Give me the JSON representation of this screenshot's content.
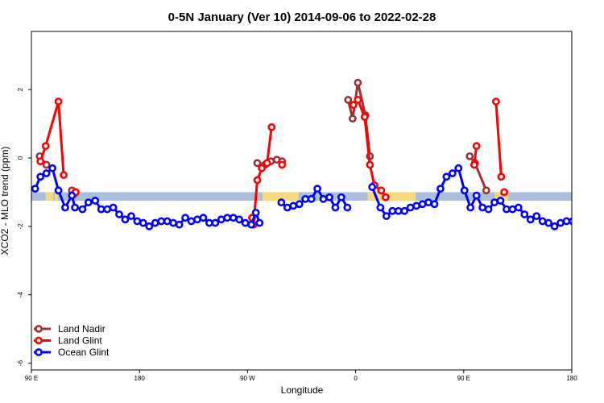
{
  "chart_data": {
    "type": "line",
    "title": "0-5N January (Ver 10)   2014-09-06 to 2022-02-28",
    "xlabel": "Longitude",
    "ylabel": "XCO2 - MLO trend (ppm)",
    "xlim": [
      90,
      450
    ],
    "ylim": [
      -6.2,
      3.7
    ],
    "x_ticks": [
      {
        "value": 90,
        "label": "90 E"
      },
      {
        "value": 162,
        "label": "180"
      },
      {
        "value": 234,
        "label": "90 W"
      },
      {
        "value": 306,
        "label": "0"
      },
      {
        "value": 378,
        "label": "90 E"
      },
      {
        "value": 450,
        "label": "180"
      }
    ],
    "y_ticks": [
      {
        "value": -6,
        "label": "-6"
      },
      {
        "value": -4,
        "label": "-4"
      },
      {
        "value": -2,
        "label": "-2"
      },
      {
        "value": 0,
        "label": "0"
      },
      {
        "value": 2,
        "label": "2"
      }
    ],
    "grid": false,
    "legend_position": "bottom-left",
    "band": {
      "y_range": [
        -1.25,
        -1.0
      ],
      "ocean_color": "#a9bfdc",
      "land_color": "#f9d77e",
      "land_segments": [
        [
          99.5,
          104.5
        ],
        [
          105.5,
          107.5
        ],
        [
          244,
          268
        ],
        [
          314,
          346
        ],
        [
          398.5,
          402.5
        ],
        [
          403.5,
          407.5
        ]
      ]
    },
    "series": [
      {
        "name": "Land Nadir",
        "color": "#a0303a",
        "segments": [
          [
            [
              95.5,
              0.05
            ],
            [
              100,
              -0.2
            ]
          ],
          [
            [
              117,
              -0.95
            ],
            [
              118.5,
              -1.05
            ]
          ],
          [
            [
              240.5,
              -0.15
            ],
            [
              245.5,
              -0.2
            ],
            [
              249.5,
              -0.1
            ],
            [
              253.5,
              -0.05
            ],
            [
              257,
              -0.1
            ]
          ],
          [
            [
              301,
              1.7
            ],
            [
              304,
              1.15
            ],
            [
              307.5,
              2.2
            ],
            [
              312.5,
              1.25
            ],
            [
              315.5,
              0.05
            ]
          ],
          [
            [
              382,
              0.05
            ],
            [
              385.5,
              -0.15
            ],
            [
              393,
              -0.95
            ]
          ]
        ]
      },
      {
        "name": "Land Glint",
        "color": "#ff0000",
        "segments": [
          [
            [
              96,
              -0.1
            ],
            [
              99.5,
              0.35
            ],
            [
              108,
              1.65
            ],
            [
              111.5,
              -0.5
            ]
          ],
          [
            [
              119.5,
              -1.0
            ]
          ],
          [
            [
              237,
              -1.75
            ],
            [
              238,
              -1.95
            ],
            [
              240.5,
              -0.65
            ],
            [
              243.5,
              -0.3
            ],
            [
              247,
              -0.15
            ],
            [
              250,
              0.9
            ]
          ],
          [
            [
              257,
              -0.2
            ]
          ],
          [
            [
              304.5,
              1.55
            ],
            [
              307.5,
              1.7
            ],
            [
              312,
              1.2
            ],
            [
              315.5,
              -0.2
            ],
            [
              318.5,
              -0.8
            ],
            [
              323,
              -0.95
            ],
            [
              326,
              -1.15
            ]
          ],
          [
            [
              385,
              -0.2
            ],
            [
              386.5,
              0.35
            ]
          ],
          [
            [
              399.5,
              1.65
            ],
            [
              403,
              -0.55
            ]
          ],
          [
            [
              405,
              -1.0
            ]
          ]
        ]
      },
      {
        "name": "Ocean Glint",
        "color": "#0000ff",
        "segments": [
          [
            [
              92.5,
              -0.9
            ],
            [
              96,
              -0.55
            ],
            [
              100,
              -0.45
            ],
            [
              104,
              -0.3
            ],
            [
              108,
              -0.95
            ],
            [
              112.5,
              -1.45
            ],
            [
              117,
              -1.1
            ],
            [
              119,
              -1.45
            ],
            [
              124,
              -1.5
            ],
            [
              128,
              -1.3
            ],
            [
              132.5,
              -1.25
            ],
            [
              136.5,
              -1.5
            ],
            [
              140.5,
              -1.5
            ],
            [
              144.5,
              -1.45
            ],
            [
              148.5,
              -1.65
            ],
            [
              152.5,
              -1.8
            ],
            [
              156.5,
              -1.7
            ],
            [
              160.5,
              -1.85
            ],
            [
              164.5,
              -1.9
            ],
            [
              168.5,
              -2.0
            ],
            [
              172.5,
              -1.9
            ],
            [
              176.5,
              -1.85
            ],
            [
              180.5,
              -1.85
            ],
            [
              184.5,
              -1.9
            ],
            [
              188.5,
              -1.95
            ],
            [
              192.5,
              -1.75
            ],
            [
              196.5,
              -1.85
            ],
            [
              200.5,
              -1.8
            ],
            [
              204.5,
              -1.75
            ],
            [
              208.5,
              -1.9
            ],
            [
              212.5,
              -1.9
            ],
            [
              216.5,
              -1.8
            ],
            [
              220.5,
              -1.75
            ],
            [
              224.5,
              -1.75
            ],
            [
              228.5,
              -1.8
            ],
            [
              232.5,
              -1.9
            ],
            [
              236.5,
              -1.95
            ],
            [
              239.5,
              -1.6
            ],
            [
              242,
              -1.9
            ]
          ],
          [
            [
              256.5,
              -1.3
            ],
            [
              260.5,
              -1.45
            ],
            [
              264.5,
              -1.4
            ],
            [
              268.5,
              -1.35
            ],
            [
              272.5,
              -1.2
            ],
            [
              276.5,
              -1.2
            ],
            [
              280.5,
              -0.9
            ],
            [
              284.5,
              -1.2
            ],
            [
              288.5,
              -1.15
            ],
            [
              292.5,
              -1.45
            ],
            [
              296.5,
              -1.15
            ],
            [
              300.5,
              -1.45
            ]
          ],
          [
            [
              317,
              -0.85
            ],
            [
              322.5,
              -1.45
            ],
            [
              326.5,
              -1.7
            ],
            [
              330.5,
              -1.55
            ],
            [
              334.5,
              -1.55
            ],
            [
              338.5,
              -1.55
            ],
            [
              342.5,
              -1.45
            ],
            [
              346.5,
              -1.4
            ],
            [
              350.5,
              -1.35
            ],
            [
              354.5,
              -1.3
            ],
            [
              358.5,
              -1.35
            ],
            [
              362.5,
              -0.9
            ],
            [
              366.5,
              -0.55
            ],
            [
              370.5,
              -0.45
            ],
            [
              374.5,
              -0.3
            ],
            [
              378.5,
              -0.95
            ],
            [
              382.5,
              -1.45
            ],
            [
              386.5,
              -1.1
            ],
            [
              390.5,
              -1.45
            ],
            [
              394.5,
              -1.5
            ],
            [
              398.5,
              -1.3
            ],
            [
              402.5,
              -1.25
            ],
            [
              406.5,
              -1.5
            ],
            [
              410.5,
              -1.5
            ],
            [
              414.5,
              -1.45
            ],
            [
              418.5,
              -1.65
            ],
            [
              422.5,
              -1.8
            ],
            [
              426.5,
              -1.7
            ],
            [
              430.5,
              -1.85
            ],
            [
              434.5,
              -1.9
            ],
            [
              438.5,
              -2.0
            ],
            [
              442.5,
              -1.9
            ],
            [
              446.5,
              -1.85
            ],
            [
              450.5,
              -1.85
            ]
          ]
        ]
      }
    ]
  }
}
